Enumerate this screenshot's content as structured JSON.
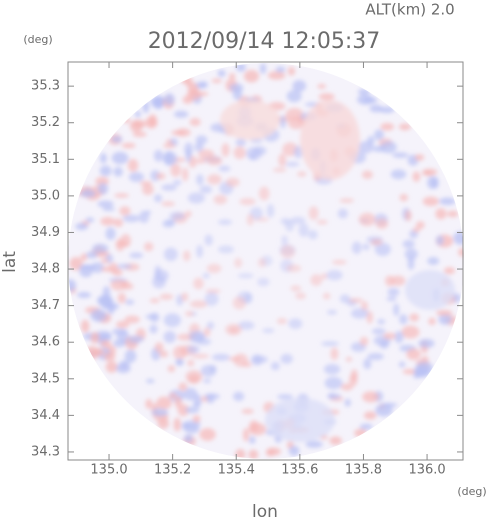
{
  "chart_data": {
    "type": "radar",
    "title": "2012/09/14 12:05:37",
    "subtitle": "ALT(km) 2.0",
    "y_unit": "(deg)",
    "x_unit": "(deg)",
    "x_label": "lon",
    "y_label": "lat",
    "xlim": [
      134.871,
      136.113
    ],
    "ylim": [
      34.278,
      35.366
    ],
    "xticks": [
      {
        "value": 135,
        "label": "135.0"
      },
      135.2,
      135.4,
      135.6,
      135.8,
      {
        "value": 136,
        "label": "136.0"
      }
    ],
    "yticks": [
      {
        "value": 34.3,
        "label": "34.3"
      },
      34.4,
      34.5,
      34.6,
      34.7,
      34.8,
      34.9,
      {
        "value": 35,
        "label": "35.0"
      },
      35.1,
      35.2,
      35.3
    ]
  }
}
